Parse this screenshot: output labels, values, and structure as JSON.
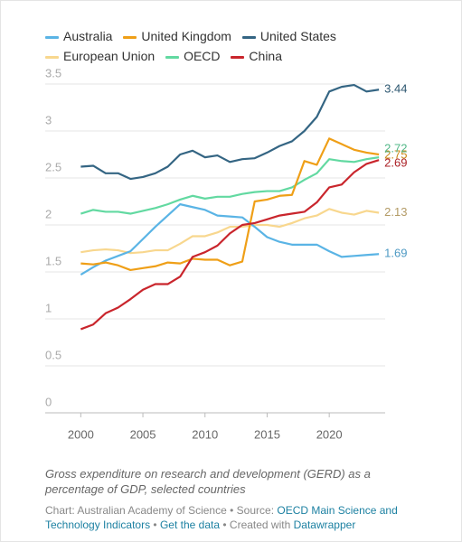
{
  "chart_data": {
    "type": "line",
    "x": [
      2000,
      2001,
      2002,
      2003,
      2004,
      2005,
      2006,
      2007,
      2008,
      2009,
      2010,
      2011,
      2012,
      2013,
      2014,
      2015,
      2016,
      2017,
      2018,
      2019,
      2020,
      2021,
      2022,
      2023,
      2024
    ],
    "xlim": [
      1997.5,
      2024.5
    ],
    "xticks": [
      2000,
      2005,
      2010,
      2015,
      2020
    ],
    "ylim": [
      0,
      3.5
    ],
    "yticks": [
      0,
      0.5,
      1,
      1.5,
      2,
      2.5,
      3,
      3.5
    ],
    "grid": true,
    "series": [
      {
        "name": "Australia",
        "color": "#5ab4e5",
        "values": [
          1.47,
          1.55,
          1.62,
          1.67,
          1.72,
          1.85,
          1.98,
          2.1,
          2.22,
          2.19,
          2.16,
          2.1,
          2.09,
          2.08,
          1.98,
          1.87,
          1.82,
          1.79,
          1.79,
          1.79,
          1.72,
          1.66,
          1.67,
          1.68,
          1.69
        ]
      },
      {
        "name": "United Kingdom",
        "color": "#ef9f17",
        "values": [
          1.59,
          1.58,
          1.6,
          1.57,
          1.52,
          1.54,
          1.56,
          1.6,
          1.59,
          1.64,
          1.63,
          1.63,
          1.57,
          1.61,
          2.25,
          2.27,
          2.31,
          2.32,
          2.68,
          2.64,
          2.92,
          2.86,
          2.8,
          2.77,
          2.75
        ]
      },
      {
        "name": "United States",
        "color": "#346583",
        "values": [
          2.62,
          2.63,
          2.55,
          2.55,
          2.49,
          2.51,
          2.55,
          2.62,
          2.75,
          2.79,
          2.72,
          2.74,
          2.67,
          2.7,
          2.71,
          2.77,
          2.84,
          2.89,
          3.0,
          3.15,
          3.42,
          3.47,
          3.49,
          3.42,
          3.44
        ]
      },
      {
        "name": "European Union",
        "color": "#f8d78e",
        "values": [
          1.71,
          1.73,
          1.74,
          1.73,
          1.7,
          1.71,
          1.73,
          1.73,
          1.8,
          1.88,
          1.88,
          1.92,
          1.98,
          1.98,
          2.0,
          2.0,
          1.98,
          2.02,
          2.07,
          2.1,
          2.17,
          2.13,
          2.11,
          2.15,
          2.13
        ]
      },
      {
        "name": "OECD",
        "color": "#62d9a1",
        "values": [
          2.12,
          2.16,
          2.14,
          2.14,
          2.12,
          2.15,
          2.18,
          2.22,
          2.27,
          2.31,
          2.28,
          2.3,
          2.3,
          2.33,
          2.35,
          2.36,
          2.36,
          2.4,
          2.48,
          2.55,
          2.7,
          2.68,
          2.67,
          2.7,
          2.72
        ]
      },
      {
        "name": "China",
        "color": "#c9252c",
        "values": [
          0.89,
          0.94,
          1.06,
          1.12,
          1.21,
          1.31,
          1.37,
          1.37,
          1.45,
          1.66,
          1.71,
          1.78,
          1.91,
          2.0,
          2.02,
          2.06,
          2.1,
          2.12,
          2.14,
          2.24,
          2.4,
          2.43,
          2.56,
          2.65,
          2.69
        ]
      }
    ],
    "notes": "Gross expenditure on research and development (GERD) as a percentage of GDP, selected countries",
    "credit": {
      "chart_by": "Chart: Australian Academy of Science",
      "separator": "•",
      "source_label": "Source:",
      "source": "OECD Main Science and Technology Indicators",
      "get_data": "Get the data",
      "created_with": "Created with",
      "tool": "Datawrapper"
    }
  }
}
